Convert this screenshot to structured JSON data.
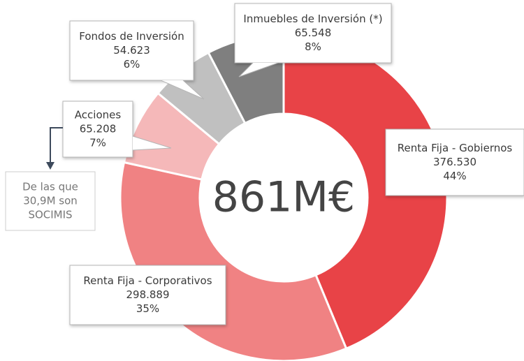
{
  "chart_data": {
    "type": "donut",
    "categories": [
      "Renta Fija - Gobiernos",
      "Renta Fija - Corporativos",
      "Acciones",
      "Fondos de Inversión",
      "Inmuebles de Inversión (*)"
    ],
    "values": [
      376530,
      298889,
      65208,
      54623,
      65548
    ],
    "value_labels": [
      "376.530",
      "298.889",
      "65.208",
      "54.623",
      "65.548"
    ],
    "percentages": [
      {
        "value": 44,
        "label": "44%"
      },
      {
        "value": 35,
        "label": "35%"
      },
      {
        "value": 7,
        "label": "7%"
      },
      {
        "value": 6,
        "label": "6%"
      },
      {
        "value": 8,
        "label": "8%"
      }
    ],
    "colors": [
      "#e84347",
      "#f08283",
      "#f5b8b9",
      "#c0c0c0",
      "#7f7f7f"
    ],
    "total_label": "861M€",
    "note": [
      "De las que",
      "30,9M son",
      "SOCIMIS"
    ]
  }
}
